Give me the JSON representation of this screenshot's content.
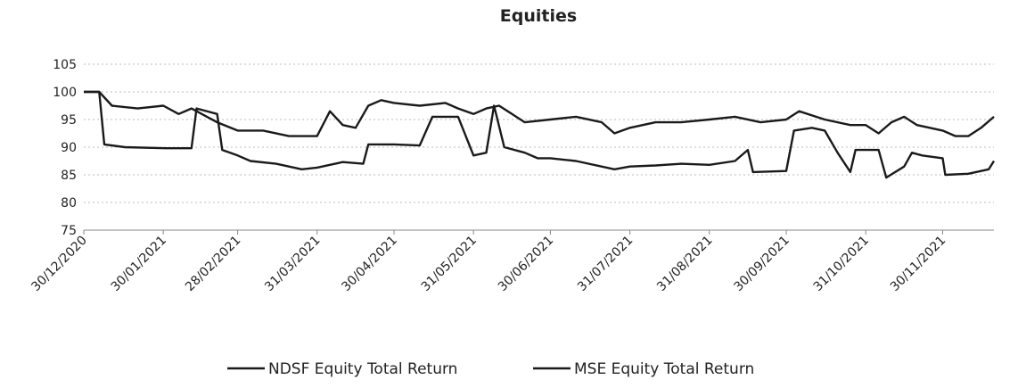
{
  "chart_data": {
    "type": "line",
    "title": "Equities",
    "xlim": [
      "30/12/2020",
      "20/12/2021"
    ],
    "xticks": [
      "30/12/2020",
      "30/01/2021",
      "28/02/2021",
      "31/03/2021",
      "30/04/2021",
      "31/05/2021",
      "30/06/2021",
      "31/07/2021",
      "31/08/2021",
      "30/09/2021",
      "31/10/2021",
      "30/11/2021"
    ],
    "ylim": [
      75,
      105
    ],
    "yticks": [
      75,
      80,
      85,
      90,
      95,
      100,
      105
    ],
    "grid": true,
    "legend": "bottom",
    "series": [
      {
        "name": "NDSF Equity Total Return",
        "color": "#1a1a1a",
        "x": [
          "30/12/2020",
          "05/01/2021",
          "10/01/2021",
          "20/01/2021",
          "30/01/2021",
          "05/02/2021",
          "10/02/2021",
          "20/02/2021",
          "28/02/2021",
          "10/03/2021",
          "20/03/2021",
          "31/03/2021",
          "05/04/2021",
          "10/04/2021",
          "15/04/2021",
          "20/04/2021",
          "25/04/2021",
          "30/04/2021",
          "10/05/2021",
          "20/05/2021",
          "25/05/2021",
          "31/05/2021",
          "05/06/2021",
          "10/06/2021",
          "15/06/2021",
          "20/06/2021",
          "30/06/2021",
          "10/07/2021",
          "20/07/2021",
          "25/07/2021",
          "31/07/2021",
          "10/08/2021",
          "20/08/2021",
          "31/08/2021",
          "10/09/2021",
          "20/09/2021",
          "30/09/2021",
          "05/10/2021",
          "15/10/2021",
          "25/10/2021",
          "31/10/2021",
          "05/11/2021",
          "10/11/2021",
          "15/11/2021",
          "20/11/2021",
          "30/11/2021",
          "05/12/2021",
          "10/12/2021",
          "15/12/2021",
          "20/12/2021"
        ],
        "values": [
          100,
          100,
          97.5,
          97,
          97.5,
          96,
          97,
          94.5,
          93,
          93,
          92,
          92,
          96.5,
          94,
          93.5,
          97.5,
          98.5,
          98,
          97.5,
          98,
          97,
          96,
          97,
          97.5,
          96,
          94.5,
          95,
          95.5,
          94.5,
          92.5,
          93.5,
          94.5,
          94.5,
          95,
          95.5,
          94.5,
          95,
          96.5,
          95,
          94,
          94,
          92.5,
          94.5,
          95.5,
          94,
          93,
          92,
          92,
          93.5,
          95.5
        ]
      },
      {
        "name": "MSE Equity Total Return",
        "color": "#1a1a1a",
        "x": [
          "30/12/2020",
          "05/01/2021",
          "07/01/2021",
          "15/01/2021",
          "31/01/2021",
          "10/02/2021",
          "12/02/2021",
          "20/02/2021",
          "22/02/2021",
          "28/02/2021",
          "05/03/2021",
          "15/03/2021",
          "25/03/2021",
          "31/03/2021",
          "10/04/2021",
          "18/04/2021",
          "20/04/2021",
          "30/04/2021",
          "10/05/2021",
          "15/05/2021",
          "25/05/2021",
          "31/05/2021",
          "05/06/2021",
          "08/06/2021",
          "12/06/2021",
          "20/06/2021",
          "25/06/2021",
          "30/06/2021",
          "10/07/2021",
          "25/07/2021",
          "31/07/2021",
          "10/08/2021",
          "20/08/2021",
          "31/08/2021",
          "10/09/2021",
          "15/09/2021",
          "17/09/2021",
          "30/09/2021",
          "03/10/2021",
          "10/10/2021",
          "15/10/2021",
          "20/10/2021",
          "25/10/2021",
          "27/10/2021",
          "05/11/2021",
          "08/11/2021",
          "15/11/2021",
          "18/11/2021",
          "22/11/2021",
          "30/11/2021",
          "01/12/2021",
          "10/12/2021",
          "18/12/2021",
          "20/12/2021"
        ],
        "values": [
          100,
          100,
          90.5,
          90,
          89.8,
          89.8,
          97,
          96,
          89.5,
          88.5,
          87.5,
          87,
          86,
          86.3,
          87.3,
          87,
          90.5,
          90.5,
          90.3,
          95.5,
          95.5,
          88.5,
          89,
          97.5,
          90,
          89,
          88,
          88,
          87.5,
          86,
          86.5,
          86.7,
          87,
          86.8,
          87.5,
          89.5,
          85.5,
          85.7,
          93,
          93.5,
          93,
          89,
          85.5,
          89.5,
          89.5,
          84.5,
          86.5,
          89,
          88.5,
          88,
          85,
          85.2,
          86,
          87.5
        ]
      }
    ]
  }
}
